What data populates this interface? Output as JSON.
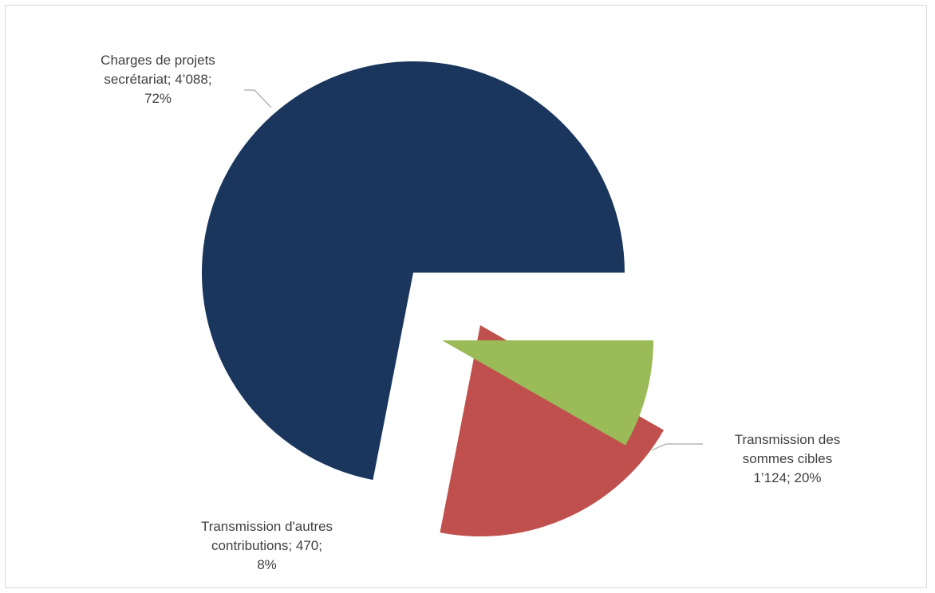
{
  "chart_data": {
    "type": "pie",
    "title": "",
    "slices": [
      {
        "name": "Charges de projets secrétariat",
        "value": 4088,
        "percent": 72,
        "color": "#1b365d",
        "label_lines": [
          "Charges de projets",
          "secrétariat; 4’088;",
          "72%"
        ]
      },
      {
        "name": "Transmission des sommes cibles",
        "value": 1124,
        "percent": 20,
        "color": "#c0504d",
        "label_lines": [
          "Transmission des",
          "sommes cibles",
          "1’124; 20%"
        ]
      },
      {
        "name": "Transmission d'autres contributions",
        "value": 470,
        "percent": 8,
        "color": "#9bbb59",
        "label_lines": [
          "Transmission d'autres",
          "contributions; 470;",
          "8%"
        ]
      }
    ],
    "legend": "none",
    "exploded": true
  }
}
